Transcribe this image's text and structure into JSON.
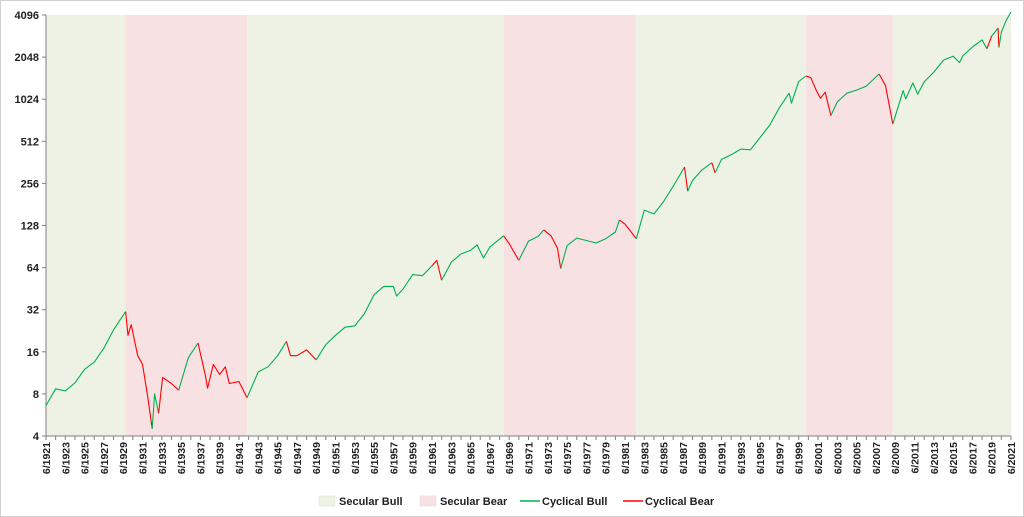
{
  "chart_data": {
    "type": "line",
    "title": "",
    "xlabel": "",
    "ylabel": "",
    "scale_y": "log2",
    "ylim": [
      4,
      4096
    ],
    "yticks": [
      4,
      8,
      16,
      32,
      64,
      128,
      256,
      512,
      1024,
      2048,
      4096
    ],
    "ytick_labels": [
      "4",
      "8",
      "16",
      "32",
      "64",
      "128",
      "256",
      "512",
      "1024",
      "2048",
      "4096"
    ],
    "xlim": [
      "1921-06",
      "2021-06"
    ],
    "xtick_labels": [
      "6/1921",
      "6/1923",
      "6/1925",
      "6/1927",
      "6/1929",
      "6/1931",
      "6/1933",
      "6/1935",
      "6/1937",
      "6/1939",
      "6/1941",
      "6/1943",
      "6/1945",
      "6/1947",
      "6/1949",
      "6/1951",
      "6/1953",
      "6/1955",
      "6/1957",
      "6/1959",
      "6/1961",
      "6/1963",
      "6/1965",
      "6/1967",
      "6/1969",
      "6/1971",
      "6/1973",
      "6/1975",
      "6/1977",
      "6/1979",
      "6/1981",
      "6/1983",
      "6/1985",
      "6/1987",
      "6/1989",
      "6/1991",
      "6/1993",
      "6/1995",
      "6/1997",
      "6/1999",
      "6/2001",
      "6/2003",
      "6/2005",
      "6/2007",
      "6/2009",
      "6/2011",
      "6/2013",
      "6/2015",
      "6/2017",
      "6/2019",
      "6/2021"
    ],
    "grid": false,
    "legend_position": "bottom-center",
    "colors": {
      "secular_bull": "#eef2e4",
      "secular_bear": "#f8e1e3",
      "cyclical_bull": "#00b050",
      "cyclical_bear": "#ff0000"
    },
    "legend": [
      {
        "label": "Secular Bull",
        "kind": "band",
        "color": "#eef2e4"
      },
      {
        "label": "Secular Bear",
        "kind": "band",
        "color": "#f8e1e3"
      },
      {
        "label": "Cyclical Bull",
        "kind": "line",
        "color": "#00b050"
      },
      {
        "label": "Cyclical Bear",
        "kind": "line",
        "color": "#ff0000"
      }
    ],
    "secular_bands": [
      {
        "regime": "bull",
        "start": "1921-06",
        "end": "1929-09"
      },
      {
        "regime": "bear",
        "start": "1929-09",
        "end": "1942-04"
      },
      {
        "regime": "bull",
        "start": "1942-04",
        "end": "1968-11"
      },
      {
        "regime": "bear",
        "start": "1968-11",
        "end": "1982-08"
      },
      {
        "regime": "bull",
        "start": "1982-08",
        "end": "2000-03"
      },
      {
        "regime": "bear",
        "start": "2000-03",
        "end": "2009-03"
      },
      {
        "regime": "bull",
        "start": "2009-03",
        "end": "2021-06"
      }
    ],
    "series": [
      {
        "regime": "bull",
        "x": [
          "1921-06",
          "1922-06",
          "1923-06",
          "1924-06",
          "1925-06",
          "1926-06",
          "1927-06",
          "1928-06",
          "1929-09"
        ],
        "y": [
          6.6,
          8.7,
          8.4,
          9.6,
          12,
          13.5,
          17,
          23,
          31
        ]
      },
      {
        "regime": "bear",
        "x": [
          "1929-09",
          "1929-12",
          "1930-04",
          "1930-12",
          "1931-06",
          "1931-12",
          "1932-06"
        ],
        "y": [
          31,
          21,
          25,
          15,
          13,
          8,
          4.5
        ]
      },
      {
        "regime": "bull",
        "x": [
          "1932-06",
          "1932-09",
          "1933-02"
        ],
        "y": [
          4.5,
          8,
          5.8
        ]
      },
      {
        "regime": "bear",
        "x": [
          "1933-02",
          "1933-07",
          "1934-06",
          "1935-03"
        ],
        "y": [
          5.8,
          10.5,
          9.5,
          8.5
        ]
      },
      {
        "regime": "bull",
        "x": [
          "1935-03",
          "1936-03",
          "1937-03"
        ],
        "y": [
          8.5,
          14.5,
          18.5
        ]
      },
      {
        "regime": "bear",
        "x": [
          "1937-03",
          "1937-12",
          "1938-03",
          "1938-10",
          "1939-06",
          "1940-01",
          "1940-06",
          "1941-06",
          "1942-04"
        ],
        "y": [
          18.5,
          11,
          8.8,
          13,
          11,
          12.5,
          9.5,
          9.8,
          7.5
        ]
      },
      {
        "regime": "bull",
        "x": [
          "1942-04",
          "1943-06",
          "1944-06",
          "1945-06",
          "1946-05"
        ],
        "y": [
          7.5,
          11.5,
          12.5,
          15,
          19
        ]
      },
      {
        "regime": "bear",
        "x": [
          "1946-05",
          "1946-10",
          "1947-06",
          "1948-06",
          "1949-06"
        ],
        "y": [
          19,
          15,
          15,
          16.5,
          14
        ]
      },
      {
        "regime": "bull",
        "x": [
          "1949-06",
          "1950-06",
          "1951-06",
          "1952-06",
          "1953-06",
          "1954-06",
          "1955-06",
          "1956-06",
          "1957-06",
          "1957-10",
          "1958-06",
          "1959-06",
          "1960-06",
          "1961-06"
        ],
        "y": [
          14,
          18,
          21,
          24,
          24.5,
          30,
          41,
          47,
          47,
          40,
          45,
          57,
          56,
          66
        ]
      },
      {
        "regime": "bear",
        "x": [
          "1961-06",
          "1961-12",
          "1962-06"
        ],
        "y": [
          66,
          72,
          52
        ]
      },
      {
        "regime": "bull",
        "x": [
          "1962-06",
          "1963-06",
          "1964-06",
          "1965-06",
          "1966-02",
          "1966-10",
          "1967-06",
          "1968-11"
        ],
        "y": [
          52,
          70,
          80,
          85,
          93,
          75,
          90,
          108
        ]
      },
      {
        "regime": "bear",
        "x": [
          "1968-11",
          "1969-06",
          "1970-06"
        ],
        "y": [
          108,
          95,
          72
        ]
      },
      {
        "regime": "bull",
        "x": [
          "1970-06",
          "1971-06",
          "1972-06",
          "1973-01"
        ],
        "y": [
          72,
          99,
          107,
          119
        ]
      },
      {
        "regime": "bear",
        "x": [
          "1973-01",
          "1973-10",
          "1974-06",
          "1974-10"
        ],
        "y": [
          119,
          108,
          88,
          63
        ]
      },
      {
        "regime": "bull",
        "x": [
          "1974-10",
          "1975-06",
          "1976-06",
          "1977-06",
          "1978-06",
          "1979-06",
          "1980-06",
          "1980-11"
        ],
        "y": [
          63,
          92,
          104,
          100,
          96,
          103,
          115,
          140
        ]
      },
      {
        "regime": "bear",
        "x": [
          "1980-11",
          "1981-06",
          "1982-08"
        ],
        "y": [
          140,
          131,
          103
        ]
      },
      {
        "regime": "bull",
        "x": [
          "1982-08",
          "1983-06",
          "1984-06",
          "1985-06",
          "1986-06",
          "1987-08"
        ],
        "y": [
          103,
          165,
          155,
          190,
          245,
          335
        ]
      },
      {
        "regime": "bear",
        "x": [
          "1987-08",
          "1987-12"
        ],
        "y": [
          335,
          225
        ]
      },
      {
        "regime": "bull",
        "x": [
          "1987-12",
          "1988-06",
          "1989-06",
          "1990-06"
        ],
        "y": [
          225,
          270,
          320,
          360
        ]
      },
      {
        "regime": "bear",
        "x": [
          "1990-06",
          "1990-10"
        ],
        "y": [
          360,
          305
        ]
      },
      {
        "regime": "bull",
        "x": [
          "1990-10",
          "1991-06",
          "1992-06",
          "1993-06",
          "1994-06",
          "1995-06",
          "1996-06",
          "1997-06",
          "1998-06",
          "1998-09",
          "1999-06",
          "2000-03"
        ],
        "y": [
          305,
          380,
          410,
          450,
          445,
          545,
          670,
          890,
          1130,
          960,
          1370,
          1500
        ]
      },
      {
        "regime": "bear",
        "x": [
          "2000-03",
          "2000-09",
          "2001-04",
          "2001-09",
          "2002-03",
          "2002-10"
        ],
        "y": [
          1500,
          1460,
          1180,
          1040,
          1150,
          780
        ]
      },
      {
        "regime": "bull",
        "x": [
          "2002-10",
          "2003-06",
          "2004-06",
          "2005-06",
          "2006-06",
          "2007-10"
        ],
        "y": [
          780,
          980,
          1130,
          1190,
          1270,
          1550
        ]
      },
      {
        "regime": "bear",
        "x": [
          "2007-10",
          "2008-06",
          "2009-03"
        ],
        "y": [
          1550,
          1280,
          680
        ]
      },
      {
        "regime": "bull",
        "x": [
          "2009-03",
          "2010-04",
          "2010-07",
          "2011-04",
          "2011-10",
          "2012-06",
          "2013-06",
          "2014-06",
          "2015-06",
          "2016-02",
          "2016-06",
          "2017-06",
          "2018-06",
          "2018-12"
        ],
        "y": [
          680,
          1180,
          1030,
          1340,
          1110,
          1360,
          1600,
          1950,
          2080,
          1870,
          2090,
          2420,
          2720,
          2350
        ]
      },
      {
        "regime": "bear",
        "x": [
          "2018-12",
          "2019-06"
        ],
        "y": [
          2350,
          2900
        ]
      },
      {
        "regime": "bull",
        "x": [
          "2019-06",
          "2020-02"
        ],
        "y": [
          2900,
          3300
        ]
      },
      {
        "regime": "bear",
        "x": [
          "2020-02",
          "2020-03"
        ],
        "y": [
          3300,
          2400
        ]
      },
      {
        "regime": "bull",
        "x": [
          "2020-03",
          "2020-06",
          "2020-12",
          "2021-06"
        ],
        "y": [
          2400,
          3100,
          3750,
          4300
        ]
      }
    ]
  }
}
